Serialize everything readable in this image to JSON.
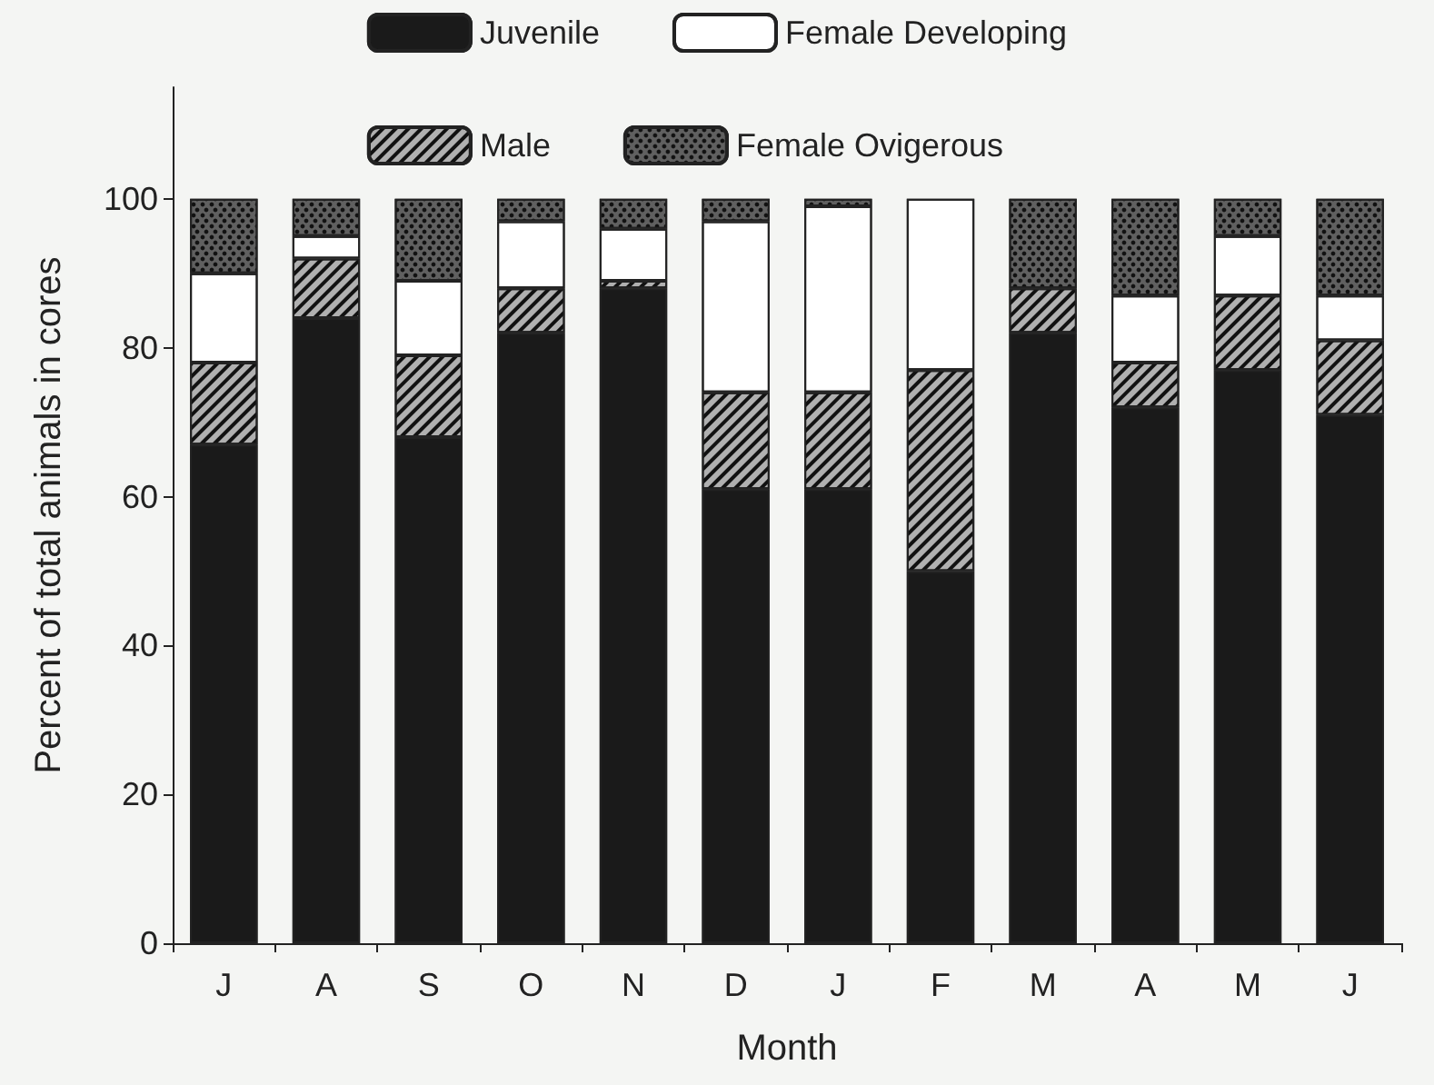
{
  "chart_data": {
    "type": "bar",
    "stacked": true,
    "xlabel": "Month",
    "ylabel": "Percent of total animals in cores",
    "categories": [
      "J",
      "A",
      "S",
      "O",
      "N",
      "D",
      "J",
      "F",
      "M",
      "A",
      "M",
      "J"
    ],
    "series": [
      {
        "name": "Juvenile",
        "color": "#1a1a1a",
        "values": [
          67,
          84,
          68,
          82,
          88,
          61,
          61,
          50,
          82,
          72,
          77,
          71
        ]
      },
      {
        "name": "Male",
        "color": "#b0b0b0",
        "values": [
          11,
          8,
          11,
          6,
          1,
          13,
          13,
          27,
          6,
          6,
          10,
          10
        ]
      },
      {
        "name": "Female Developing",
        "color": "#ffffff",
        "values": [
          12,
          3,
          10,
          9,
          7,
          23,
          25,
          23,
          0,
          9,
          8,
          6
        ]
      },
      {
        "name": "Female Ovigerous",
        "color": "#606060",
        "values": [
          10,
          5,
          11,
          3,
          4,
          3,
          1,
          0,
          12,
          13,
          5,
          13
        ]
      }
    ],
    "ylim": [
      0,
      115
    ],
    "yticks": [
      0,
      20,
      40,
      60,
      80,
      100
    ],
    "grid": false,
    "legend": "top"
  }
}
